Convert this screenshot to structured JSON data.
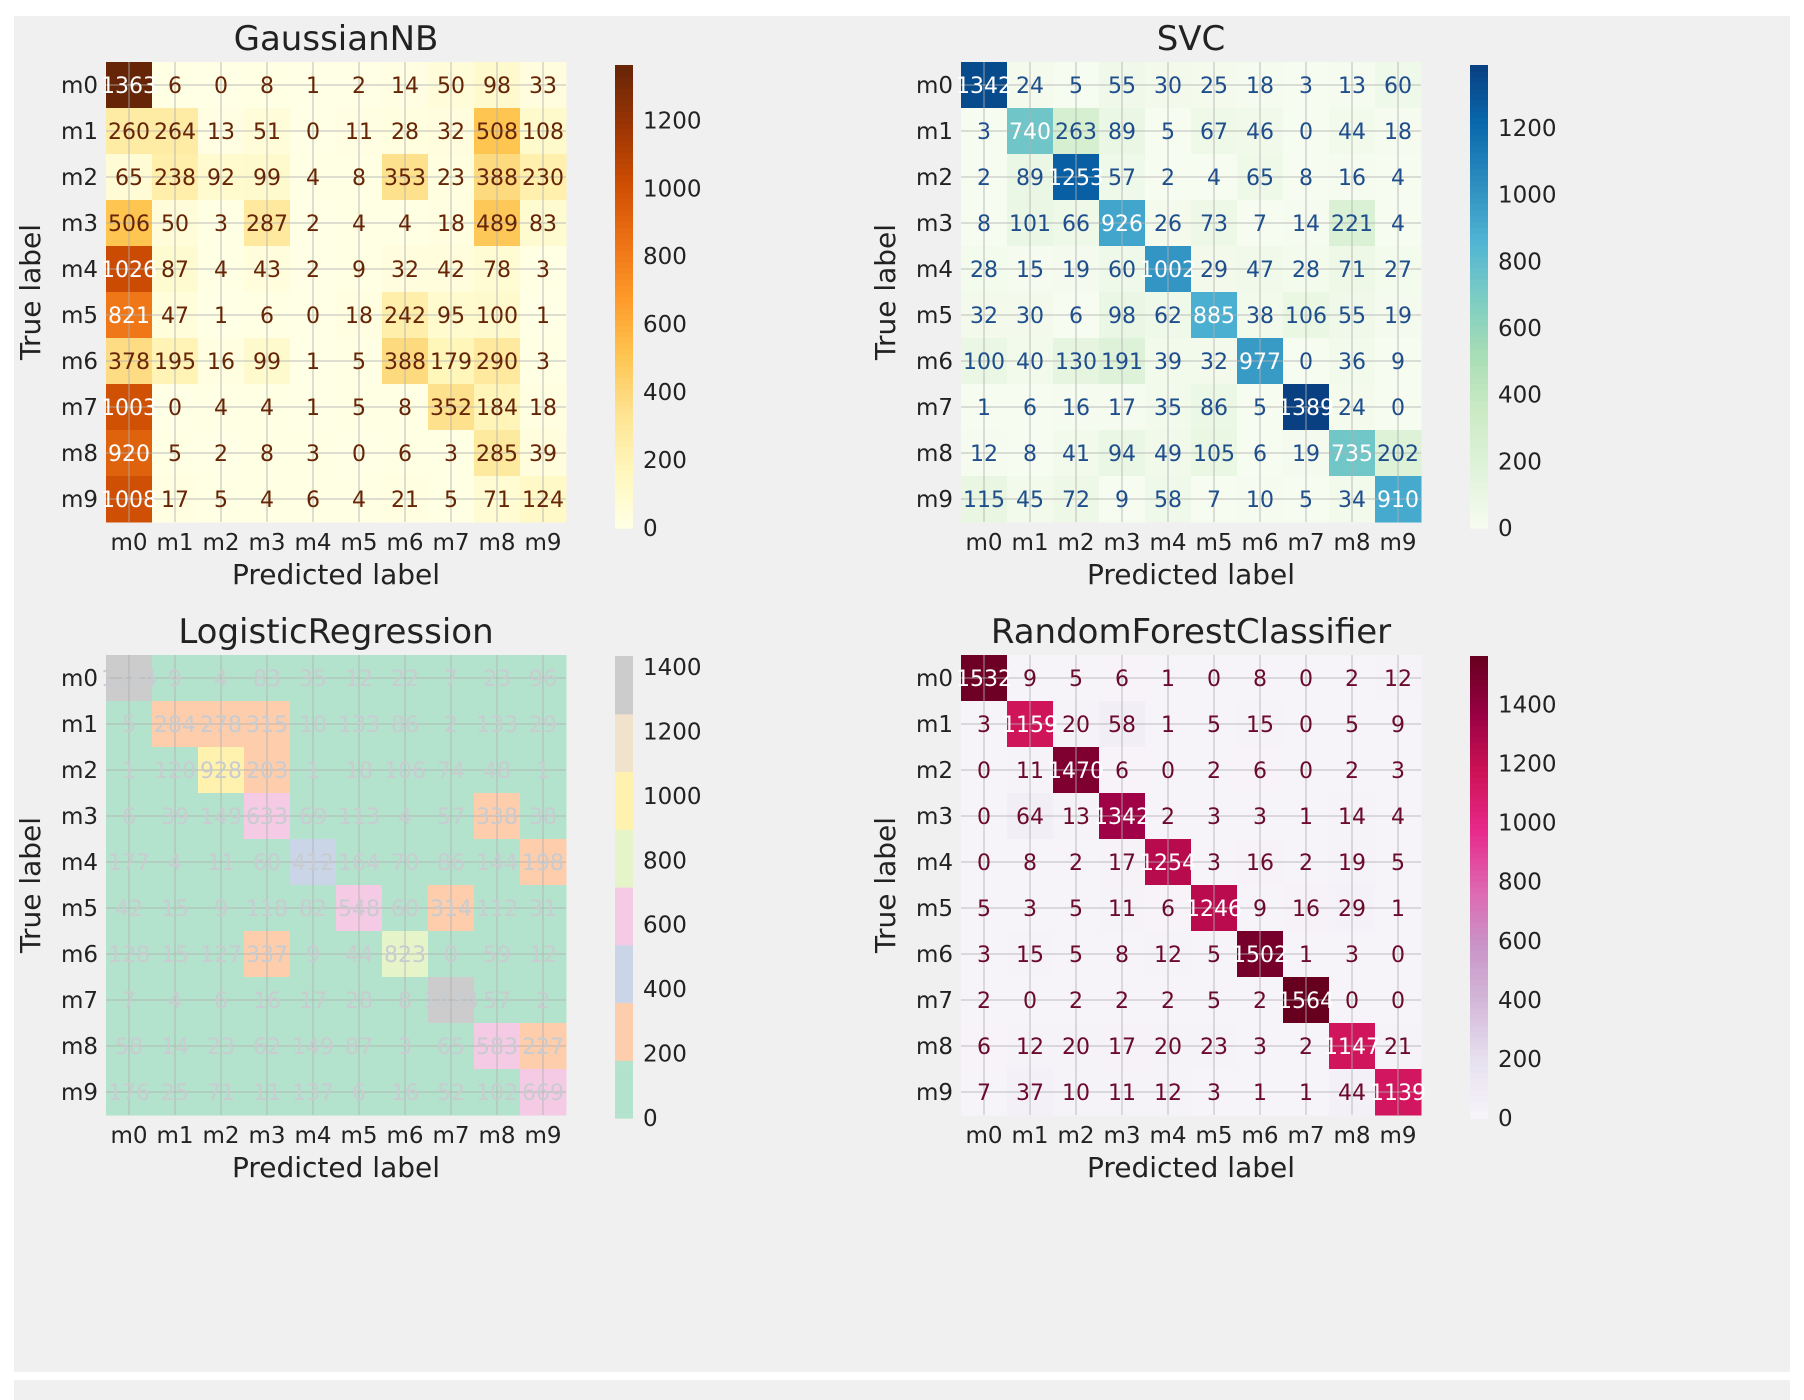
{
  "chart_data": [
    {
      "type": "heatmap",
      "title": "GaussianNB",
      "xlabel": "Predicted label",
      "ylabel": "True label",
      "x_categories": [
        "m0",
        "m1",
        "m2",
        "m3",
        "m4",
        "m5",
        "m6",
        "m7",
        "m8",
        "m9"
      ],
      "y_categories": [
        "m0",
        "m1",
        "m2",
        "m3",
        "m4",
        "m5",
        "m6",
        "m7",
        "m8",
        "m9"
      ],
      "cell_labels": [
        [
          "1363",
          "6",
          "0",
          "8",
          "1",
          "2",
          "14",
          "50",
          "98",
          "33"
        ],
        [
          "260",
          "264",
          "13",
          "51",
          "0",
          "11",
          "28",
          "32",
          "508",
          "108"
        ],
        [
          "65",
          "238",
          "92",
          "99",
          "4",
          "8",
          "353",
          "23",
          "388",
          "230"
        ],
        [
          "506",
          "50",
          "3",
          "287",
          "2",
          "4",
          "4",
          "18",
          "489",
          "83"
        ],
        [
          "1026",
          "87",
          "4",
          "43",
          "2",
          "9",
          "32",
          "42",
          "78",
          "3"
        ],
        [
          "821",
          "47",
          "1",
          "6",
          "0",
          "18",
          "242",
          "95",
          "100",
          "1"
        ],
        [
          "378",
          "195",
          "16",
          "99",
          "1",
          "5",
          "388",
          "179",
          "290",
          "3"
        ],
        [
          "1003",
          "0",
          "4",
          "4",
          "1",
          "5",
          "8",
          "352",
          "184",
          "18"
        ],
        [
          "920",
          "5",
          "2",
          "8",
          "3",
          "0",
          "6",
          "3",
          "285",
          "39"
        ],
        [
          "1008",
          "17",
          "5",
          "4",
          "6",
          "4",
          "21",
          "5",
          "71",
          "124"
        ]
      ],
      "colormap": "YlOrBr",
      "colorbar": {
        "min": 0,
        "max": 1363,
        "ticks": [
          0,
          200,
          400,
          600,
          800,
          1000,
          1200
        ]
      }
    },
    {
      "type": "heatmap",
      "title": "SVC",
      "xlabel": "Predicted label",
      "ylabel": "True label",
      "x_categories": [
        "m0",
        "m1",
        "m2",
        "m3",
        "m4",
        "m5",
        "m6",
        "m7",
        "m8",
        "m9"
      ],
      "y_categories": [
        "m0",
        "m1",
        "m2",
        "m3",
        "m4",
        "m5",
        "m6",
        "m7",
        "m8",
        "m9"
      ],
      "cell_labels": [
        [
          "1342",
          "24",
          "5",
          "55",
          "30",
          "25",
          "18",
          "3",
          "13",
          "60"
        ],
        [
          "3",
          "740",
          "263",
          "89",
          "5",
          "67",
          "46",
          "0",
          "44",
          "18"
        ],
        [
          "2",
          "89",
          "1253",
          "57",
          "2",
          "4",
          "65",
          "8",
          "16",
          "4"
        ],
        [
          "8",
          "101",
          "66",
          "926",
          "26",
          "73",
          "7",
          "14",
          "221",
          "4"
        ],
        [
          "28",
          "15",
          "19",
          "60",
          "1002",
          "29",
          "47",
          "28",
          "71",
          "27"
        ],
        [
          "32",
          "30",
          "6",
          "98",
          "62",
          "885",
          "38",
          "106",
          "55",
          "19"
        ],
        [
          "100",
          "40",
          "130",
          "191",
          "39",
          "32",
          "977",
          "0",
          "36",
          "9"
        ],
        [
          "1",
          "6",
          "16",
          "17",
          "35",
          "86",
          "5",
          "1389",
          "24",
          "0"
        ],
        [
          "12",
          "8",
          "41",
          "94",
          "49",
          "105",
          "6",
          "19",
          "735",
          "202"
        ],
        [
          "115",
          "45",
          "72",
          "9",
          "58",
          "7",
          "10",
          "5",
          "34",
          "910"
        ]
      ],
      "colormap": "GnBu",
      "colorbar": {
        "min": 0,
        "max": 1389,
        "ticks": [
          0,
          200,
          400,
          600,
          800,
          1000,
          1200
        ]
      }
    },
    {
      "type": "heatmap",
      "title": "LogisticRegression",
      "xlabel": "Predicted label",
      "ylabel": "True label",
      "x_categories": [
        "m0",
        "m1",
        "m2",
        "m3",
        "m4",
        "m5",
        "m6",
        "m7",
        "m8",
        "m9"
      ],
      "y_categories": [
        "m0",
        "m1",
        "m2",
        "m3",
        "m4",
        "m5",
        "m6",
        "m7",
        "m8",
        "m9"
      ],
      "cell_labels": [
        [
          "1284",
          "9",
          "4",
          "83",
          "35",
          "12",
          "22",
          "7",
          "23",
          "96"
        ],
        [
          "5",
          "284",
          "278",
          "315",
          "10",
          "133",
          "86",
          "2",
          "133",
          "29"
        ],
        [
          "1",
          "120",
          "928",
          "203",
          "1",
          "18",
          "106",
          "74",
          "48",
          "1"
        ],
        [
          "6",
          "39",
          "149",
          "633",
          "69",
          "113",
          "4",
          "57",
          "338",
          "38"
        ],
        [
          "177",
          "4",
          "11",
          "60",
          "412",
          "164",
          "70",
          "86",
          "144",
          "198"
        ],
        [
          "42",
          "15",
          "9",
          "118",
          "82",
          "548",
          "60",
          "314",
          "112",
          "31"
        ],
        [
          "128",
          "15",
          "127",
          "337",
          "9",
          "44",
          "823",
          "0",
          "59",
          "12"
        ],
        [
          "7",
          "4",
          "6",
          "16",
          "17",
          "28",
          "8",
          "1434",
          "57",
          "2"
        ],
        [
          "58",
          "14",
          "23",
          "62",
          "149",
          "87",
          "3",
          "65",
          "583",
          "227"
        ],
        [
          "176",
          "25",
          "71",
          "11",
          "137",
          "6",
          "16",
          "52",
          "102",
          "669"
        ]
      ],
      "colormap": "Pastel2",
      "colorbar": {
        "min": 0,
        "max": 1434,
        "ticks": [
          0,
          200,
          400,
          600,
          800,
          1000,
          1200,
          1400
        ]
      }
    },
    {
      "type": "heatmap",
      "title": "RandomForestClassifier",
      "xlabel": "Predicted label",
      "ylabel": "True label",
      "x_categories": [
        "m0",
        "m1",
        "m2",
        "m3",
        "m4",
        "m5",
        "m6",
        "m7",
        "m8",
        "m9"
      ],
      "y_categories": [
        "m0",
        "m1",
        "m2",
        "m3",
        "m4",
        "m5",
        "m6",
        "m7",
        "m8",
        "m9"
      ],
      "cell_labels": [
        [
          "1532",
          "9",
          "5",
          "6",
          "1",
          "0",
          "8",
          "0",
          "2",
          "12"
        ],
        [
          "3",
          "1159",
          "20",
          "58",
          "1",
          "5",
          "15",
          "0",
          "5",
          "9"
        ],
        [
          "0",
          "11",
          "1470",
          "6",
          "0",
          "2",
          "6",
          "0",
          "2",
          "3"
        ],
        [
          "0",
          "64",
          "13",
          "1342",
          "2",
          "3",
          "3",
          "1",
          "14",
          "4"
        ],
        [
          "0",
          "8",
          "2",
          "17",
          "1254",
          "3",
          "16",
          "2",
          "19",
          "5"
        ],
        [
          "5",
          "3",
          "5",
          "11",
          "6",
          "1246",
          "9",
          "16",
          "29",
          "1"
        ],
        [
          "3",
          "15",
          "5",
          "8",
          "12",
          "5",
          "1502",
          "1",
          "3",
          "0"
        ],
        [
          "2",
          "0",
          "2",
          "2",
          "2",
          "5",
          "2",
          "1564",
          "0",
          "0"
        ],
        [
          "6",
          "12",
          "20",
          "17",
          "20",
          "23",
          "3",
          "2",
          "1147",
          "21"
        ],
        [
          "7",
          "37",
          "10",
          "11",
          "12",
          "3",
          "1",
          "1",
          "44",
          "1139"
        ]
      ],
      "colormap": "PuRd",
      "colorbar": {
        "min": 0,
        "max": 1564,
        "ticks": [
          0,
          200,
          400,
          600,
          800,
          1000,
          1200,
          1400
        ]
      }
    }
  ]
}
